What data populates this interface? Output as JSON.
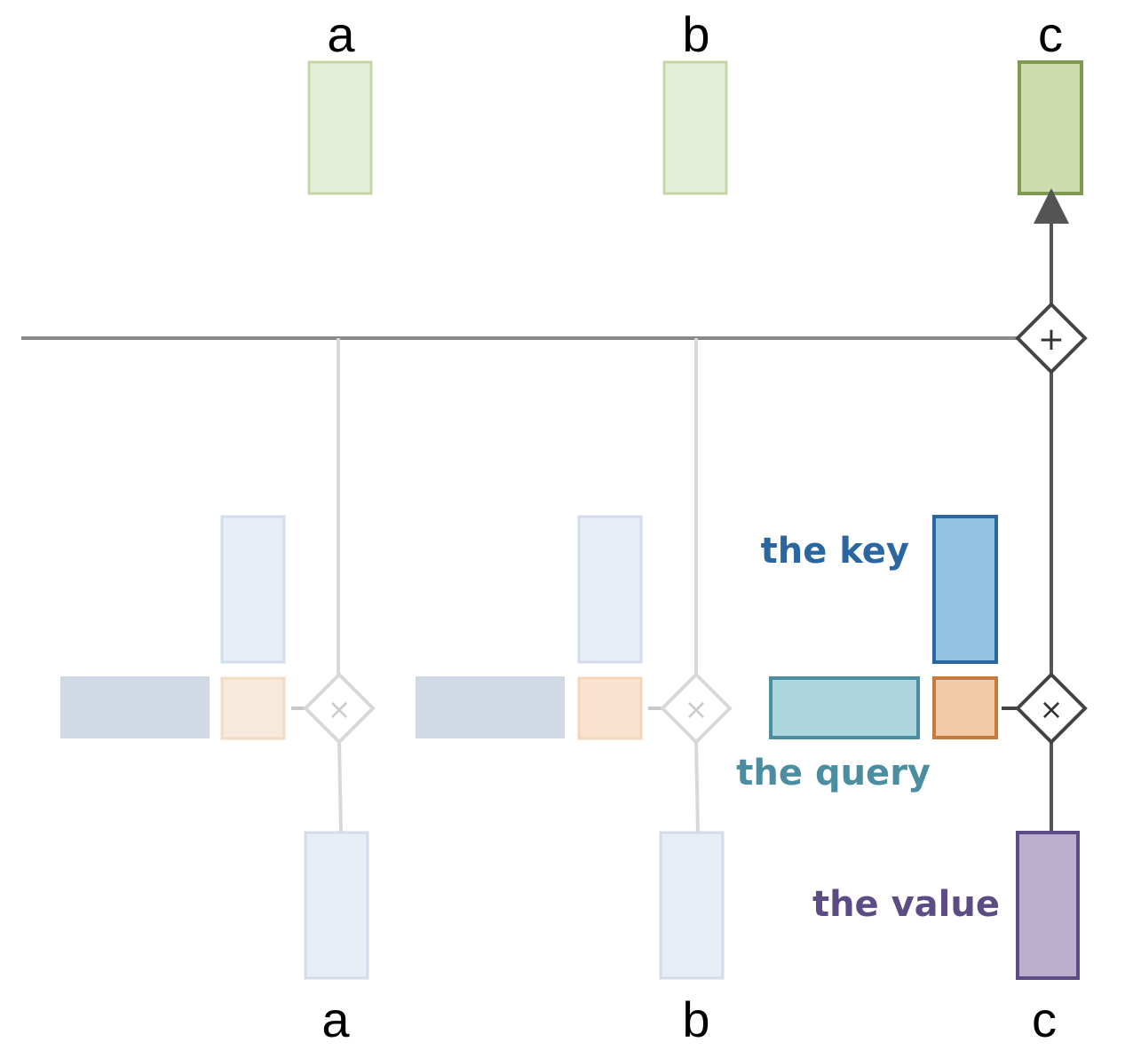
{
  "top_tokens": [
    "a",
    "b",
    "c"
  ],
  "bottom_tokens": [
    "a",
    "b",
    "c"
  ],
  "labels": {
    "key": "the key",
    "query": "the query",
    "value": "the value"
  },
  "operators": {
    "sum": "+",
    "multiply": "×"
  },
  "colors": {
    "key": "#2a66a0",
    "query": "#4a8ea0",
    "value": "#5c4c86",
    "output_active": "#cfdcb0",
    "output_faded": "#e5eed6",
    "faded_block": "#e9eef6",
    "faded_bar": "#d1d9e4",
    "faded_orange": "#f7e4d2",
    "orange": "#f2cba6"
  }
}
